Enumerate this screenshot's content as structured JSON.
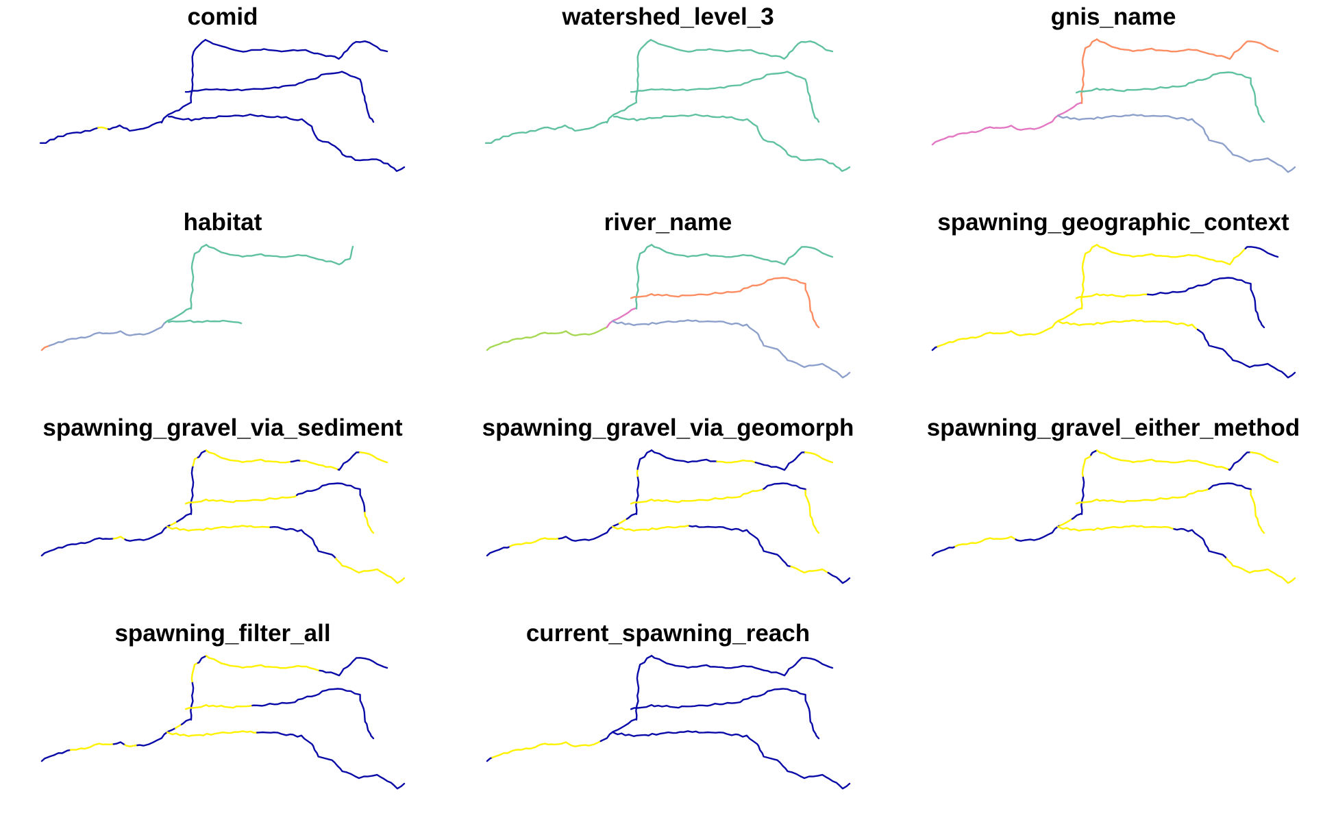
{
  "figure": {
    "panels": [
      {
        "title": "comid",
        "segments": {
          "trib_lower": "#0A0AA8",
          "mainstem_upper": "#0A0AA8",
          "upper_north": "#0A0AA8",
          "middle_branch": "#0A0AA8",
          "south_branch": "#0A0AA8",
          "low_west": [
            [
              "#0A0AA8",
              0,
              0.48
            ],
            [
              "#FFF200",
              0.48,
              0.56
            ],
            [
              "#0A0AA8",
              0.56,
              1
            ]
          ]
        }
      },
      {
        "title": "watershed_level_3",
        "segments": {
          "trib_lower": "#5FC1A2",
          "mainstem_upper": "#5FC1A2",
          "upper_north": "#5FC1A2",
          "middle_branch": "#5FC1A2",
          "south_branch": "#5FC1A2",
          "low_west": "#5FC1A2"
        }
      },
      {
        "title": "gnis_name",
        "segments": {
          "low_west": "#E377C2",
          "trib_lower": "#E377C2",
          "mainstem_upper": "#FC8D62",
          "upper_north": "#FC8D62",
          "middle_branch": "#5FC1A2",
          "south_branch": "#8DA0CB"
        }
      },
      {
        "title": "habitat",
        "segments": {
          "low_west": [
            [
              "#FC8D62",
              0,
              0.07
            ],
            [
              "#8DA0CB",
              0.07,
              1
            ]
          ],
          "trib_lower": [
            [
              "#8DA0CB",
              0,
              0.18
            ],
            [
              "#5FC1A2",
              0.18,
              1
            ]
          ],
          "mainstem_upper": "#5FC1A2",
          "upper_north_short": "#5FC1A2",
          "hab_stub": "#5FC1A2"
        }
      },
      {
        "title": "river_name",
        "segments": {
          "low_west": "#A6D854",
          "trib_lower": "#E377C2",
          "mainstem_upper": "#5FC1A2",
          "upper_north": "#5FC1A2",
          "middle_branch": "#FC8D62",
          "south_branch": "#8DA0CB"
        }
      },
      {
        "title": "spawning_geographic_context",
        "segments": {
          "low_west": [
            [
              "#0A0AA8",
              0,
              0.05
            ],
            [
              "#FFF200",
              0.05,
              1
            ]
          ],
          "trib_lower": "#FFF200",
          "mainstem_upper": "#FFF200",
          "upper_north": [
            [
              "#FFF200",
              0,
              0.82
            ],
            [
              "#0A0AA8",
              0.82,
              1
            ]
          ],
          "middle_branch": [
            [
              "#FFF200",
              0,
              0.32
            ],
            [
              "#0A0AA8",
              0.32,
              1
            ]
          ],
          "south_branch": [
            [
              "#FFF200",
              0,
              0.55
            ],
            [
              "#0A0AA8",
              0.55,
              1
            ]
          ]
        }
      },
      {
        "title": "spawning_gravel_via_sediment",
        "segments": {
          "low_west": [
            [
              "#0A0AA8",
              0,
              0.6
            ],
            [
              "#FFF200",
              0.6,
              0.7
            ],
            [
              "#0A0AA8",
              0.7,
              1
            ]
          ],
          "trib_lower": [
            [
              "#0A0AA8",
              0,
              0.35
            ],
            [
              "#FFF200",
              0.35,
              0.55
            ],
            [
              "#0A0AA8",
              0.55,
              1
            ]
          ],
          "mainstem_upper": [
            [
              "#0A0AA8",
              0,
              0.7
            ],
            [
              "#FFF200",
              0.7,
              0.85
            ],
            [
              "#0A0AA8",
              0.85,
              1
            ]
          ],
          "upper_north": [
            [
              "#FFF200",
              0,
              0.45
            ],
            [
              "#0A0AA8",
              0.45,
              0.5
            ],
            [
              "#FFF200",
              0.5,
              0.7
            ],
            [
              "#0A0AA8",
              0.7,
              0.85
            ],
            [
              "#FFF200",
              0.85,
              1
            ]
          ],
          "middle_branch": [
            [
              "#FFF200",
              0,
              0.5
            ],
            [
              "#0A0AA8",
              0.5,
              0.9
            ],
            [
              "#FFF200",
              0.9,
              1
            ]
          ],
          "south_branch": [
            [
              "#FFF200",
              0,
              0.4
            ],
            [
              "#0A0AA8",
              0.4,
              0.7
            ],
            [
              "#FFF200",
              0.7,
              1
            ]
          ]
        }
      },
      {
        "title": "spawning_gravel_via_geomorph",
        "segments": {
          "low_west": [
            [
              "#0A0AA8",
              0,
              0.2
            ],
            [
              "#FFF200",
              0.2,
              0.6
            ],
            [
              "#0A0AA8",
              0.6,
              1
            ]
          ],
          "trib_lower": [
            [
              "#0A0AA8",
              0,
              0.45
            ],
            [
              "#FFF200",
              0.45,
              0.7
            ],
            [
              "#0A0AA8",
              0.7,
              1
            ]
          ],
          "mainstem_upper": [
            [
              "#0A0AA8",
              0,
              0.55
            ],
            [
              "#FFF200",
              0.55,
              0.65
            ],
            [
              "#0A0AA8",
              0.65,
              1
            ]
          ],
          "upper_north": [
            [
              "#0A0AA8",
              0,
              0.35
            ],
            [
              "#FFF200",
              0.35,
              0.55
            ],
            [
              "#0A0AA8",
              0.55,
              0.85
            ],
            [
              "#FFF200",
              0.85,
              1
            ]
          ],
          "middle_branch": [
            [
              "#FFF200",
              0,
              0.6
            ],
            [
              "#0A0AA8",
              0.6,
              0.8
            ],
            [
              "#FFF200",
              0.8,
              1
            ]
          ],
          "south_branch": [
            [
              "#FFF200",
              0,
              0.3
            ],
            [
              "#0A0AA8",
              0.3,
              0.75
            ],
            [
              "#FFF200",
              0.75,
              0.9
            ],
            [
              "#0A0AA8",
              0.9,
              1
            ]
          ]
        }
      },
      {
        "title": "spawning_gravel_either_method",
        "segments": {
          "low_west": [
            [
              "#0A0AA8",
              0,
              0.2
            ],
            [
              "#FFF200",
              0.2,
              0.7
            ],
            [
              "#0A0AA8",
              0.7,
              1
            ]
          ],
          "trib_lower": [
            [
              "#0A0AA8",
              0,
              0.3
            ],
            [
              "#FFF200",
              0.3,
              0.7
            ],
            [
              "#0A0AA8",
              0.7,
              1
            ]
          ],
          "mainstem_upper": [
            [
              "#0A0AA8",
              0,
              0.55
            ],
            [
              "#FFF200",
              0.55,
              0.9
            ],
            [
              "#0A0AA8",
              0.9,
              1
            ]
          ],
          "upper_north": [
            [
              "#FFF200",
              0,
              0.7
            ],
            [
              "#0A0AA8",
              0.7,
              0.85
            ],
            [
              "#FFF200",
              0.85,
              1
            ]
          ],
          "middle_branch": [
            [
              "#FFF200",
              0,
              0.6
            ],
            [
              "#0A0AA8",
              0.6,
              0.8
            ],
            [
              "#FFF200",
              0.8,
              1
            ]
          ],
          "south_branch": [
            [
              "#FFF200",
              0,
              0.45
            ],
            [
              "#0A0AA8",
              0.45,
              0.7
            ],
            [
              "#FFF200",
              0.7,
              1
            ]
          ]
        }
      },
      {
        "title": "spawning_filter_all",
        "segments": {
          "low_west": [
            [
              "#0A0AA8",
              0,
              0.25
            ],
            [
              "#FFF200",
              0.25,
              0.6
            ],
            [
              "#0A0AA8",
              0.6,
              0.7
            ],
            [
              "#FFF200",
              0.7,
              0.8
            ],
            [
              "#0A0AA8",
              0.8,
              1
            ]
          ],
          "trib_lower": [
            [
              "#0A0AA8",
              0,
              0.5
            ],
            [
              "#FFF200",
              0.5,
              0.7
            ],
            [
              "#0A0AA8",
              0.7,
              1
            ]
          ],
          "mainstem_upper": [
            [
              "#0A0AA8",
              0,
              0.55
            ],
            [
              "#FFF200",
              0.55,
              0.85
            ],
            [
              "#0A0AA8",
              0.85,
              1
            ]
          ],
          "upper_north": [
            [
              "#FFF200",
              0,
              0.6
            ],
            [
              "#0A0AA8",
              0.6,
              1
            ]
          ],
          "middle_branch": [
            [
              "#FFF200",
              0,
              0.3
            ],
            [
              "#0A0AA8",
              0.3,
              1
            ]
          ],
          "south_branch": [
            [
              "#FFF200",
              0,
              0.35
            ],
            [
              "#0A0AA8",
              0.35,
              1
            ]
          ]
        }
      },
      {
        "title": "current_spawning_reach",
        "segments": {
          "low_west": [
            [
              "#0A0AA8",
              0,
              0.05
            ],
            [
              "#FFF200",
              0.05,
              0.95
            ],
            [
              "#0A0AA8",
              0.95,
              1
            ]
          ],
          "trib_lower": "#0A0AA8",
          "mainstem_upper": "#0A0AA8",
          "upper_north": "#0A0AA8",
          "middle_branch": "#0A0AA8",
          "south_branch": "#0A0AA8"
        }
      }
    ]
  }
}
